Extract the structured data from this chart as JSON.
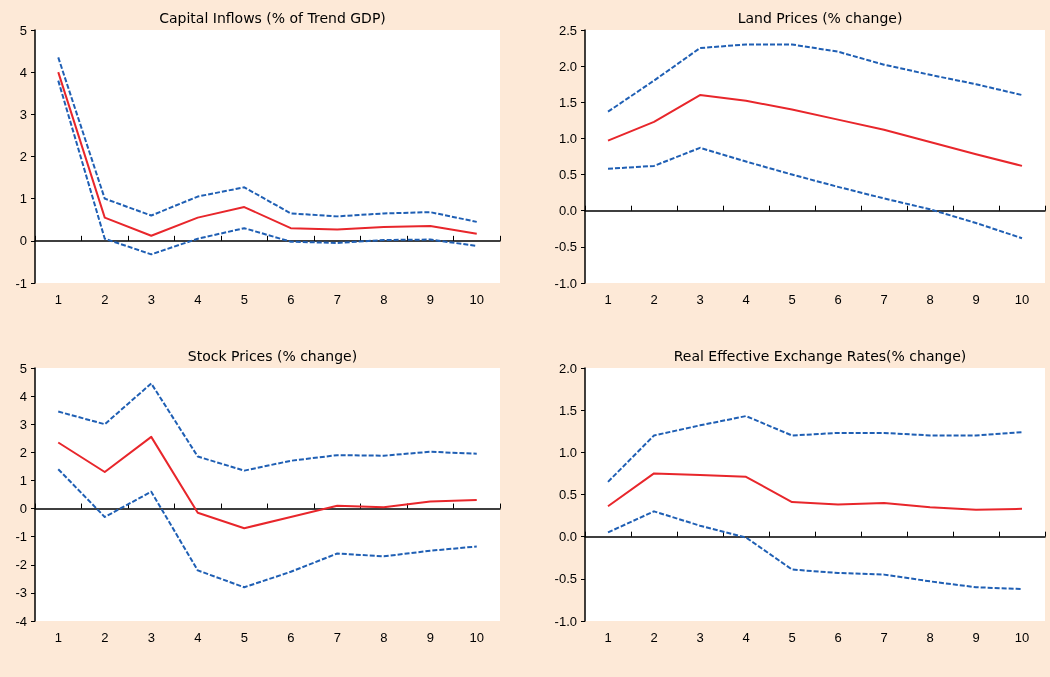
{
  "chart_data": [
    {
      "type": "line",
      "title": "Capital Inflows (% of Trend GDP)",
      "categories": [
        "1",
        "2",
        "3",
        "4",
        "5",
        "6",
        "7",
        "8",
        "9",
        "10"
      ],
      "ylim": [
        -1,
        5
      ],
      "yticks": [
        -1,
        0,
        1,
        2,
        3,
        4,
        5
      ],
      "marker": "none",
      "series": [
        {
          "color": "#e8262b",
          "line_style": "solid",
          "values": [
            4.0,
            0.55,
            0.12,
            0.55,
            0.8,
            0.3,
            0.27,
            0.33,
            0.35,
            0.17
          ]
        },
        {
          "color": "#1f5fb4",
          "line_style": "dashed",
          "values": [
            4.35,
            1.0,
            0.6,
            1.05,
            1.27,
            0.65,
            0.58,
            0.65,
            0.68,
            0.45
          ]
        },
        {
          "color": "#1f5fb4",
          "line_style": "dashed",
          "values": [
            3.8,
            0.05,
            -0.32,
            0.05,
            0.3,
            -0.02,
            -0.05,
            0.02,
            0.03,
            -0.12
          ]
        }
      ]
    },
    {
      "type": "line",
      "title": "Land Prices (% change)",
      "categories": [
        "1",
        "2",
        "3",
        "4",
        "5",
        "6",
        "7",
        "8",
        "9",
        "10"
      ],
      "ylim": [
        -1,
        2.5
      ],
      "yticks": [
        {
          "value": -1,
          "label": "-1.0"
        },
        -0.5,
        {
          "value": 0,
          "label": "0.0"
        },
        0.5,
        {
          "value": 1,
          "label": "1.0"
        },
        1.5,
        {
          "value": 2,
          "label": "2.0"
        },
        2.5
      ],
      "marker": "none",
      "series": [
        {
          "color": "#e8262b",
          "line_style": "solid",
          "values": [
            0.97,
            1.23,
            1.6,
            1.52,
            1.4,
            1.26,
            1.12,
            0.95,
            0.78,
            0.62
          ]
        },
        {
          "color": "#1f5fb4",
          "line_style": "dashed",
          "values": [
            1.37,
            1.8,
            2.25,
            2.3,
            2.3,
            2.2,
            2.02,
            1.88,
            1.75,
            1.6
          ]
        },
        {
          "color": "#1f5fb4",
          "line_style": "dashed",
          "values": [
            0.58,
            0.62,
            0.87,
            0.68,
            0.5,
            0.33,
            0.17,
            0.02,
            -0.17,
            -0.38
          ]
        }
      ]
    },
    {
      "type": "line",
      "title": "Stock Prices (% change)",
      "categories": [
        "1",
        "2",
        "3",
        "4",
        "5",
        "6",
        "7",
        "8",
        "9",
        "10"
      ],
      "ylim": [
        -4,
        5
      ],
      "yticks": [
        -4,
        -3,
        -2,
        -1,
        0,
        1,
        2,
        3,
        4,
        5
      ],
      "marker": "none",
      "series": [
        {
          "color": "#e8262b",
          "line_style": "solid",
          "values": [
            2.35,
            1.3,
            2.55,
            -0.15,
            -0.7,
            -0.3,
            0.1,
            0.05,
            0.25,
            0.3
          ]
        },
        {
          "color": "#1f5fb4",
          "line_style": "dashed",
          "values": [
            3.45,
            3.0,
            4.45,
            1.85,
            1.35,
            1.7,
            1.9,
            1.88,
            2.02,
            1.95
          ]
        },
        {
          "color": "#1f5fb4",
          "line_style": "dashed",
          "values": [
            1.4,
            -0.3,
            0.6,
            -2.2,
            -2.8,
            -2.25,
            -1.6,
            -1.7,
            -1.5,
            -1.35
          ]
        }
      ]
    },
    {
      "type": "line",
      "title": "Real Effective Exchange Rates(% change)",
      "categories": [
        "1",
        "2",
        "3",
        "4",
        "5",
        "6",
        "7",
        "8",
        "9",
        "10"
      ],
      "ylim": [
        -1,
        2
      ],
      "yticks": [
        {
          "value": -1,
          "label": "-1.0"
        },
        -0.5,
        {
          "value": 0,
          "label": "0.0"
        },
        0.5,
        {
          "value": 1,
          "label": "1.0"
        },
        1.5,
        {
          "value": 2,
          "label": "2.0"
        }
      ],
      "marker": "none",
      "series": [
        {
          "color": "#e8262b",
          "line_style": "solid",
          "values": [
            0.36,
            0.75,
            0.73,
            0.71,
            0.41,
            0.38,
            0.4,
            0.35,
            0.32,
            0.33
          ]
        },
        {
          "color": "#1f5fb4",
          "line_style": "dashed",
          "values": [
            0.65,
            1.2,
            1.32,
            1.43,
            1.2,
            1.23,
            1.23,
            1.2,
            1.2,
            1.24
          ]
        },
        {
          "color": "#1f5fb4",
          "line_style": "dashed",
          "values": [
            0.05,
            0.3,
            0.13,
            -0.01,
            -0.39,
            -0.43,
            -0.45,
            -0.53,
            -0.6,
            -0.62
          ]
        }
      ]
    }
  ]
}
